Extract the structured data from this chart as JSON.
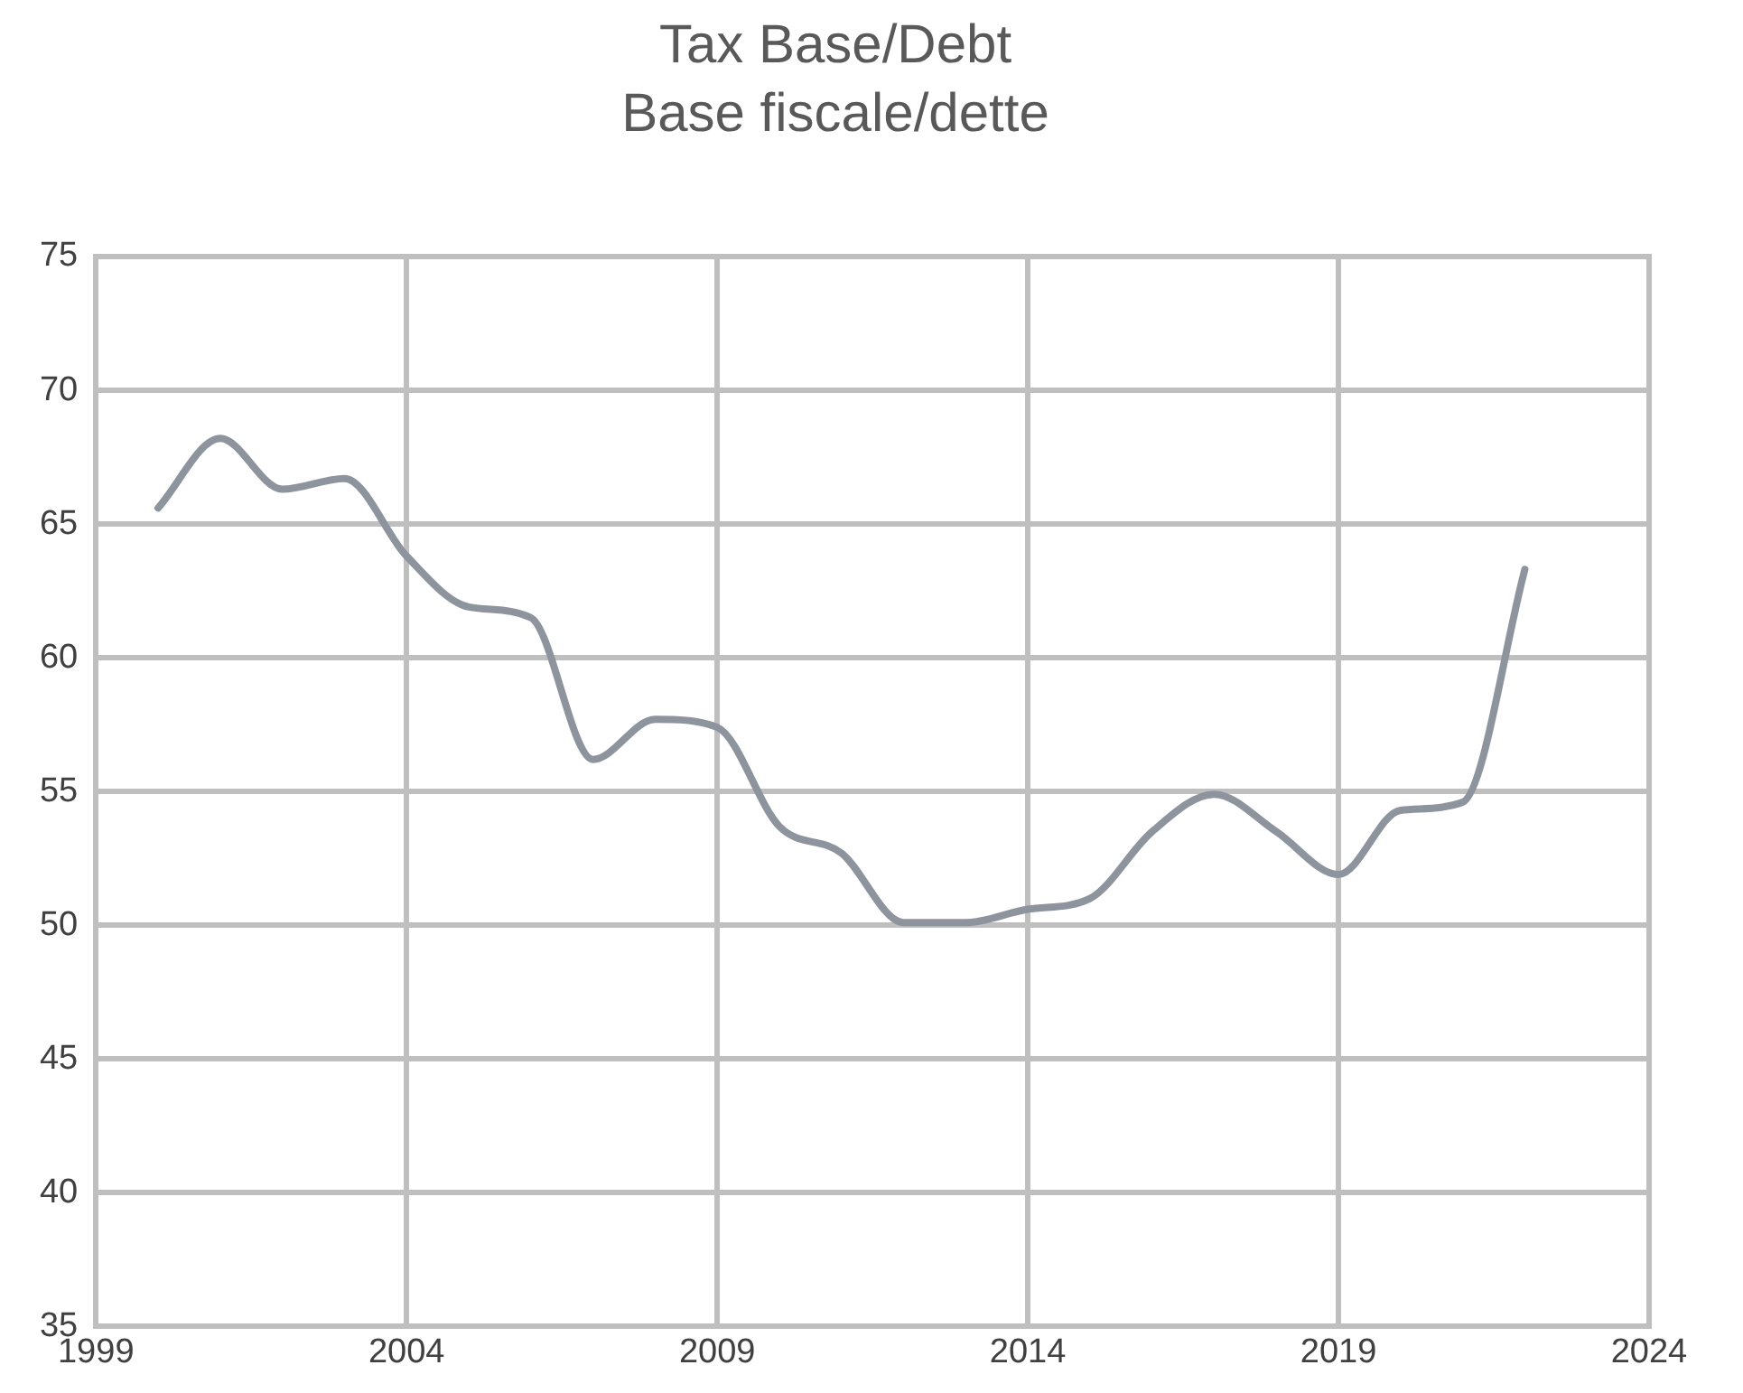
{
  "chart_data": {
    "type": "line",
    "title": "Tax Base/Debt",
    "subtitle": "Base fiscale/dette",
    "x": [
      2000,
      2001,
      2002,
      2003,
      2004,
      2005,
      2006,
      2007,
      2008,
      2009,
      2010,
      2011,
      2012,
      2013,
      2014,
      2015,
      2016,
      2017,
      2018,
      2019,
      2020,
      2021,
      2022
    ],
    "series": [
      {
        "color": "#8e949e",
        "values": [
          65.6,
          68.2,
          66.3,
          66.7,
          63.8,
          61.9,
          61.5,
          56.2,
          57.7,
          57.4,
          53.7,
          52.7,
          50.1,
          50.1,
          50.6,
          51.0,
          53.5,
          54.9,
          53.5,
          51.9,
          54.3,
          54.6,
          63.3
        ]
      }
    ],
    "xlim": [
      1999,
      2024
    ],
    "xticks": [
      1999,
      2004,
      2009,
      2014,
      2019,
      2024
    ],
    "ylim": [
      35,
      75
    ],
    "yticks": [
      35,
      40,
      45,
      50,
      55,
      60,
      65,
      70,
      75
    ],
    "grid": true,
    "legend": false,
    "marker": "none",
    "line_style": "solid"
  }
}
